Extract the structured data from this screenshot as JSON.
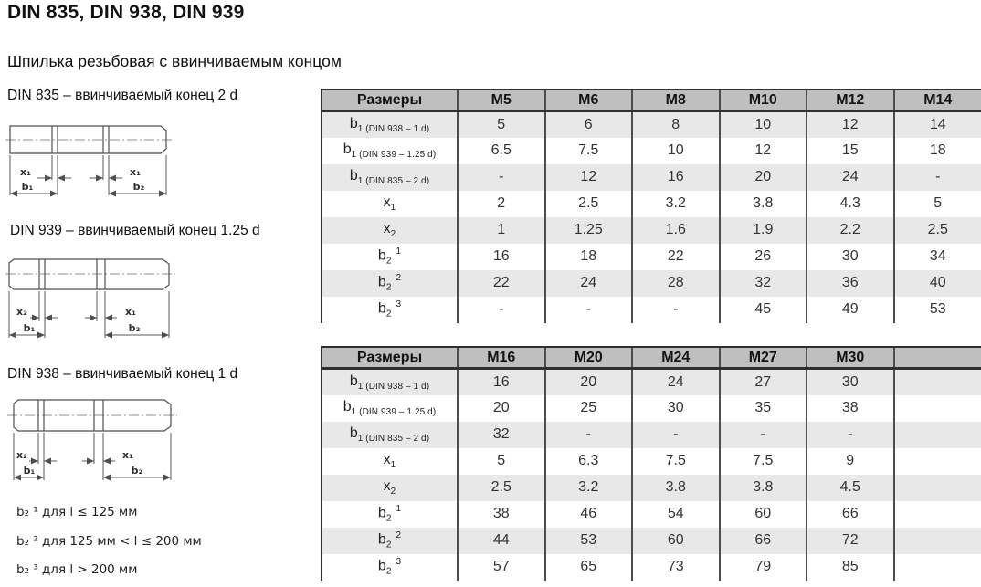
{
  "page": {
    "title": "DIN 835, DIN 938, DIN 939",
    "subtitle": "Шпилька резьбовая с ввинчиваемым концом"
  },
  "drawings": [
    {
      "id": "din835",
      "caption": "DIN 835 – ввинчиваемый конец 2 d",
      "dims": {
        "left": "x₁",
        "right": "x₁",
        "b_left": "b₁",
        "b_right": "b₂"
      }
    },
    {
      "id": "din939",
      "caption": "DIN 939 – ввинчиваемый конец 1.25 d",
      "dims": {
        "left": "x₂",
        "right": "x₁",
        "b_left": "b₁",
        "b_right": "b₂"
      }
    },
    {
      "id": "din938",
      "caption": "DIN 938 – ввинчиваемый конец 1 d",
      "dims": {
        "left": "x₂",
        "right": "x₁",
        "b_left": "b₁",
        "b_right": "b₂"
      }
    }
  ],
  "footnotes": [
    "b₂ ¹ для l ≤ 125 мм",
    "b₂ ² для 125 мм < l ≤ 200 мм",
    "b₂ ³ для l > 200 мм"
  ],
  "tables": [
    {
      "name": "M5–M14",
      "header": [
        "Размеры",
        "M5",
        "M6",
        "M8",
        "M10",
        "M12",
        "M14"
      ],
      "rows": [
        {
          "label": {
            "base": "b",
            "sub": "1 (DIN 938 – 1 d)"
          },
          "values": [
            "5",
            "6",
            "8",
            "10",
            "12",
            "14"
          ]
        },
        {
          "label": {
            "base": "b",
            "sub": "1 (DIN 939 – 1.25 d)"
          },
          "values": [
            "6.5",
            "7.5",
            "10",
            "12",
            "15",
            "18"
          ]
        },
        {
          "label": {
            "base": "b",
            "sub": "1 (DIN 835 – 2 d)"
          },
          "values": [
            "-",
            "12",
            "16",
            "20",
            "24",
            "-"
          ]
        },
        {
          "label": {
            "base": "x",
            "sub": "1"
          },
          "values": [
            "2",
            "2.5",
            "3.2",
            "3.8",
            "4.3",
            "5"
          ]
        },
        {
          "label": {
            "base": "x",
            "sub": "2"
          },
          "values": [
            "1",
            "1.25",
            "1.6",
            "1.9",
            "2.2",
            "2.5"
          ]
        },
        {
          "label": {
            "base": "b",
            "sub": "2",
            "sup": "1"
          },
          "values": [
            "16",
            "18",
            "22",
            "26",
            "30",
            "34"
          ]
        },
        {
          "label": {
            "base": "b",
            "sub": "2",
            "sup": "2"
          },
          "values": [
            "22",
            "24",
            "28",
            "32",
            "36",
            "40"
          ]
        },
        {
          "label": {
            "base": "b",
            "sub": "2",
            "sup": "3"
          },
          "values": [
            "-",
            "-",
            "-",
            "45",
            "49",
            "53"
          ]
        }
      ]
    },
    {
      "name": "M16–M30",
      "header": [
        "Размеры",
        "M16",
        "M20",
        "M24",
        "M27",
        "M30",
        ""
      ],
      "rows": [
        {
          "label": {
            "base": "b",
            "sub": "1 (DIN 938 – 1 d)"
          },
          "values": [
            "16",
            "20",
            "24",
            "27",
            "30",
            ""
          ]
        },
        {
          "label": {
            "base": "b",
            "sub": "1 (DIN 939 – 1.25 d)"
          },
          "values": [
            "20",
            "25",
            "30",
            "35",
            "38",
            ""
          ]
        },
        {
          "label": {
            "base": "b",
            "sub": "1 (DIN 835 – 2 d)"
          },
          "values": [
            "32",
            "-",
            "-",
            "-",
            "-",
            ""
          ]
        },
        {
          "label": {
            "base": "x",
            "sub": "1"
          },
          "values": [
            "5",
            "6.3",
            "7.5",
            "7.5",
            "9",
            ""
          ]
        },
        {
          "label": {
            "base": "x",
            "sub": "2"
          },
          "values": [
            "2.5",
            "3.2",
            "3.8",
            "3.8",
            "4.5",
            ""
          ]
        },
        {
          "label": {
            "base": "b",
            "sub": "2",
            "sup": "1"
          },
          "values": [
            "38",
            "46",
            "54",
            "60",
            "66",
            ""
          ]
        },
        {
          "label": {
            "base": "b",
            "sub": "2",
            "sup": "2"
          },
          "values": [
            "44",
            "53",
            "60",
            "66",
            "72",
            ""
          ]
        },
        {
          "label": {
            "base": "b",
            "sub": "2",
            "sup": "3"
          },
          "values": [
            "57",
            "65",
            "73",
            "79",
            "85",
            ""
          ]
        }
      ]
    }
  ],
  "colors": {
    "header_bg": "#bfbfbf",
    "row_alt_bg": "#e8e8e8",
    "grid_line": "#4d4d4d",
    "border_heavy": "#2f2f2f",
    "text": "#333333"
  }
}
